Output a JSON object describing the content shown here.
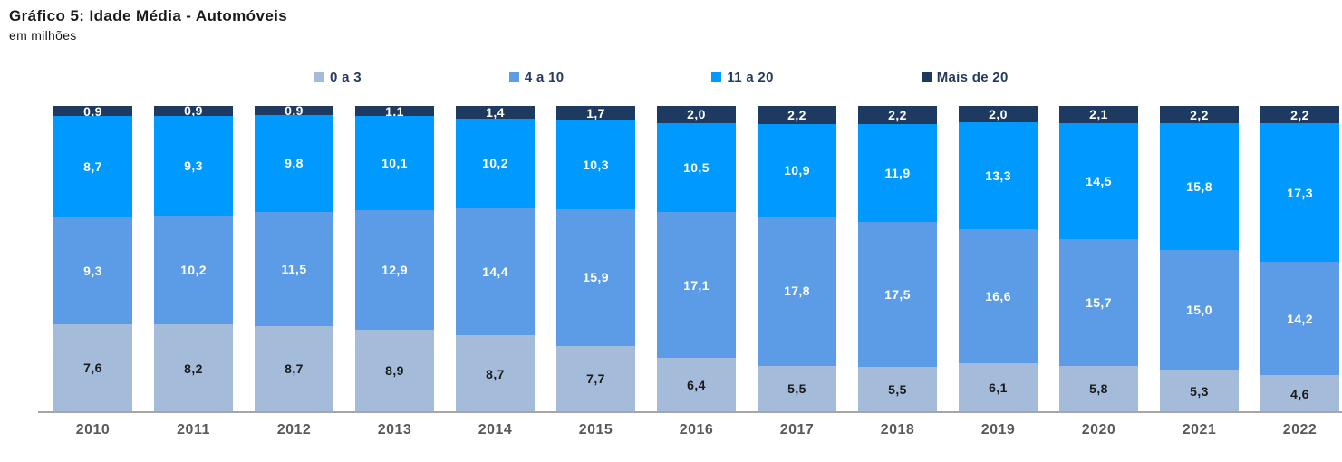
{
  "title": "Gráfico 5: Idade Média - Automóveis",
  "subtitle": "em milhões",
  "colors": {
    "serie_0a3": "#A4BBD9",
    "serie_4a10": "#5C9CE6",
    "serie_11a20": "#009AFE",
    "serie_mais20": "#1F3A60",
    "axis_line": "#A6A6A6",
    "year_label": "#595959",
    "dark_label": "#1A1A1A",
    "light_label": "#FFFFFF"
  },
  "chart_data": {
    "type": "bar",
    "subtype": "stacked-100pct-height-with-absolute-labels",
    "title": "Gráfico 5: Idade Média - Automóveis",
    "units": "em milhões",
    "legend_position": "top",
    "grid": false,
    "categories": [
      "2010",
      "2011",
      "2012",
      "2013",
      "2014",
      "2015",
      "2016",
      "2017",
      "2018",
      "2019",
      "2020",
      "2021",
      "2022"
    ],
    "series": [
      {
        "name": "0 a 3",
        "color": "#A4BBD9",
        "label_color": "#1A1A1A",
        "values": [
          7.6,
          8.2,
          8.7,
          8.9,
          8.7,
          7.7,
          6.4,
          5.5,
          5.5,
          6.1,
          5.8,
          5.3,
          4.6
        ]
      },
      {
        "name": "4 a 10",
        "color": "#5C9CE6",
        "label_color": "#FFFFFF",
        "values": [
          9.3,
          10.2,
          11.5,
          12.9,
          14.4,
          15.9,
          17.1,
          17.8,
          17.5,
          16.6,
          15.7,
          15.0,
          14.2
        ]
      },
      {
        "name": "11 a 20",
        "color": "#009AFE",
        "label_color": "#FFFFFF",
        "values": [
          8.7,
          9.3,
          9.8,
          10.1,
          10.2,
          10.3,
          10.5,
          10.9,
          11.9,
          13.3,
          14.5,
          15.8,
          17.3
        ]
      },
      {
        "name": "Mais de 20",
        "color": "#1F3A60",
        "label_color": "#FFFFFF",
        "values": [
          0.9,
          0.9,
          0.9,
          1.1,
          1.4,
          1.7,
          2.0,
          2.2,
          2.2,
          2.0,
          2.1,
          2.2,
          2.2
        ]
      }
    ],
    "decimal_separator": ","
  }
}
